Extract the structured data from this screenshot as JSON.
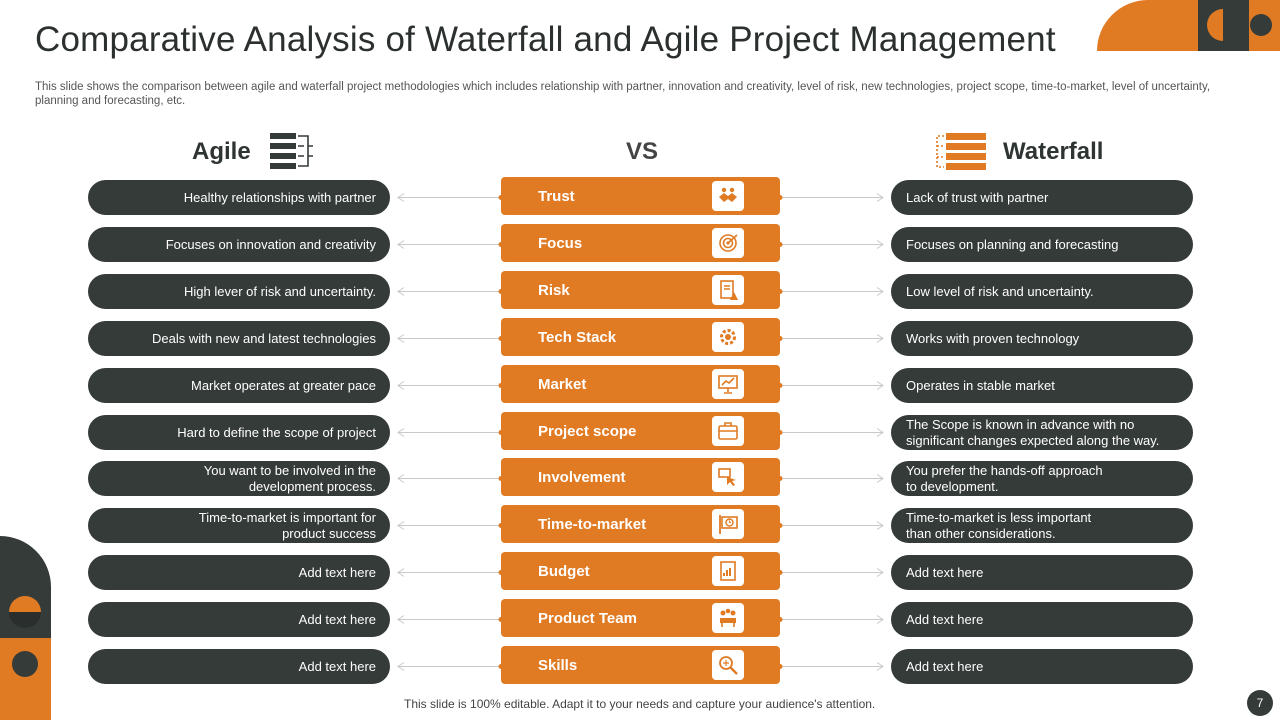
{
  "title": "Comparative Analysis of Waterfall and Agile Project Management",
  "subtitle": "This slide shows the comparison between agile and waterfall project methodologies which includes relationship with partner, innovation and creativity,  level of risk, new technologies, project scope, time-to-market, level of uncertainty, planning and forecasting, etc.",
  "headers": {
    "agile": "Agile",
    "vs": "VS",
    "waterfall": "Waterfall"
  },
  "colors": {
    "accent": "#e07b24",
    "dark": "#353b39"
  },
  "rows": [
    {
      "agile": "Healthy relationships with partner",
      "criterion": "Trust",
      "icon": "handshake-icon",
      "waterfall": "Lack of trust with partner"
    },
    {
      "agile": "Focuses on innovation  and creativity",
      "criterion": "Focus",
      "icon": "target-icon",
      "waterfall": "Focuses on planning and forecasting"
    },
    {
      "agile": "High lever of risk and uncertainty.",
      "criterion": "Risk",
      "icon": "risk-document-icon",
      "waterfall": "Low level  of risk and uncertainty."
    },
    {
      "agile": "Deals with new and latest technologies",
      "criterion": "Tech Stack",
      "icon": "gear-icon",
      "waterfall": "Works with  proven  technology"
    },
    {
      "agile": "Market operates at greater  pace",
      "criterion": "Market",
      "icon": "presentation-chart-icon",
      "waterfall": "Operates in stable market"
    },
    {
      "agile": "Hard to define  the scope of project",
      "criterion": "Project scope",
      "icon": "briefcase-icon",
      "waterfall": "The Scope is known in advance  with no\nsignificant changes expected along the way."
    },
    {
      "agile": "You want to be involved  in the\ndevelopment  process.",
      "criterion": "Involvement",
      "icon": "hand-pointer-icon",
      "waterfall": "You prefer the hands-off  approach\nto development."
    },
    {
      "agile": "Time-to-market  is important for\nproduct success",
      "criterion": "Time-to-market",
      "icon": "clock-sign-icon",
      "waterfall": "Time-to-market  is less important\nthan other considerations."
    },
    {
      "agile": "Add text here",
      "criterion": "Budget",
      "icon": "budget-report-icon",
      "waterfall": "Add text here"
    },
    {
      "agile": "Add text here",
      "criterion": "Product Team",
      "icon": "team-icon",
      "waterfall": "Add text here"
    },
    {
      "agile": "Add text here",
      "criterion": "Skills",
      "icon": "magnifier-icon",
      "waterfall": "Add text here"
    }
  ],
  "footer": "This slide is 100% editable. Adapt it to your needs and capture your audience's attention.",
  "page_number": "7"
}
